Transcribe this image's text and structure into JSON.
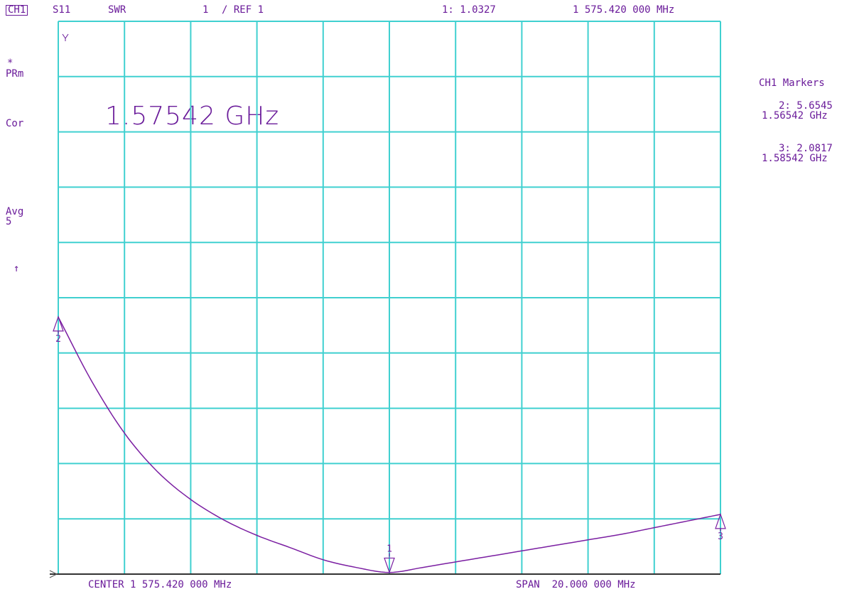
{
  "header": {
    "channel": "CH1",
    "parameter": "S11",
    "format": "SWR",
    "scale": "1",
    "ref": "/ REF 1",
    "active_marker_readout": "1: 1.0327",
    "active_marker_freq": "1 575.420 000 MHz"
  },
  "left_annotations": {
    "star": "*",
    "prm": "PRm",
    "cor": "Cor",
    "avg": "Avg",
    "avg_count": "5",
    "ref_arrow": "↑"
  },
  "stimulus_readout": "1.57542 GHz",
  "markers_panel": {
    "title": "CH1 Markers",
    "m2_value": "2: 5.6545",
    "m2_freq": "1.56542 GHz",
    "m3_value": "3: 2.0817",
    "m3_freq": "1.58542 GHz"
  },
  "footer": {
    "center": "CENTER 1 575.420 000 MHz",
    "span": "SPAN  20.000 000 MHz"
  },
  "colors": {
    "grid": "#40d0d0",
    "trace": "#7b1fa2",
    "text": "#6a1b9a"
  },
  "chart_data": {
    "type": "line",
    "title": "",
    "xlabel": "",
    "ylabel": "",
    "xlim": [
      1565.42,
      1585.42
    ],
    "ylim": [
      1,
      11
    ],
    "grid": true,
    "x": [
      1565.42,
      1566.42,
      1567.42,
      1568.42,
      1569.42,
      1570.42,
      1571.42,
      1572.42,
      1573.42,
      1574.42,
      1575.42,
      1576.42,
      1577.42,
      1578.42,
      1579.42,
      1580.42,
      1581.42,
      1582.42,
      1583.42,
      1584.42,
      1585.42
    ],
    "series": [
      {
        "values": [
          5.65,
          4.5,
          3.55,
          2.85,
          2.35,
          1.98,
          1.7,
          1.48,
          1.26,
          1.12,
          1.03,
          1.12,
          1.22,
          1.32,
          1.42,
          1.52,
          1.62,
          1.72,
          1.84,
          1.96,
          2.08
        ]
      }
    ],
    "markers": [
      {
        "label": "1",
        "x": 1575.42,
        "y": 1.0327
      },
      {
        "label": "2",
        "x": 1565.42,
        "y": 5.6545
      },
      {
        "label": "3",
        "x": 1585.42,
        "y": 2.0817
      }
    ]
  }
}
